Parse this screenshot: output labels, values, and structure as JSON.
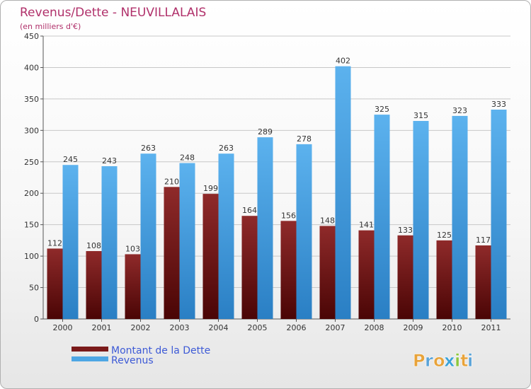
{
  "chart_data": {
    "type": "bar",
    "title": "Revenus/Dette - NEUVILLALAIS",
    "subtitle": "(en milliers d'€)",
    "categories": [
      "2000",
      "2001",
      "2002",
      "2003",
      "2004",
      "2005",
      "2006",
      "2007",
      "2008",
      "2009",
      "2010",
      "2011"
    ],
    "series": [
      {
        "name": "Montant de la Dette",
        "color": "#7a1a1a",
        "values": [
          112,
          108,
          103,
          210,
          199,
          164,
          156,
          148,
          141,
          133,
          125,
          117
        ]
      },
      {
        "name": "Revenus",
        "color": "#4ea6e4",
        "values": [
          245,
          243,
          263,
          248,
          263,
          289,
          278,
          402,
          325,
          315,
          323,
          333
        ]
      }
    ],
    "ylim": [
      0,
      450
    ],
    "yticks": [
      0,
      50,
      100,
      150,
      200,
      250,
      300,
      350,
      400,
      450
    ],
    "grid": true,
    "legend": "bottom-left"
  },
  "brand": {
    "letters": [
      "P",
      "r",
      "o",
      "x",
      "i",
      "t",
      "i"
    ],
    "colors": [
      "#e8a33a",
      "#5aa3d8",
      "#e8a33a",
      "#3aa2d8",
      "#8cc63e",
      "#e8a33a",
      "#5aa3d8"
    ]
  }
}
